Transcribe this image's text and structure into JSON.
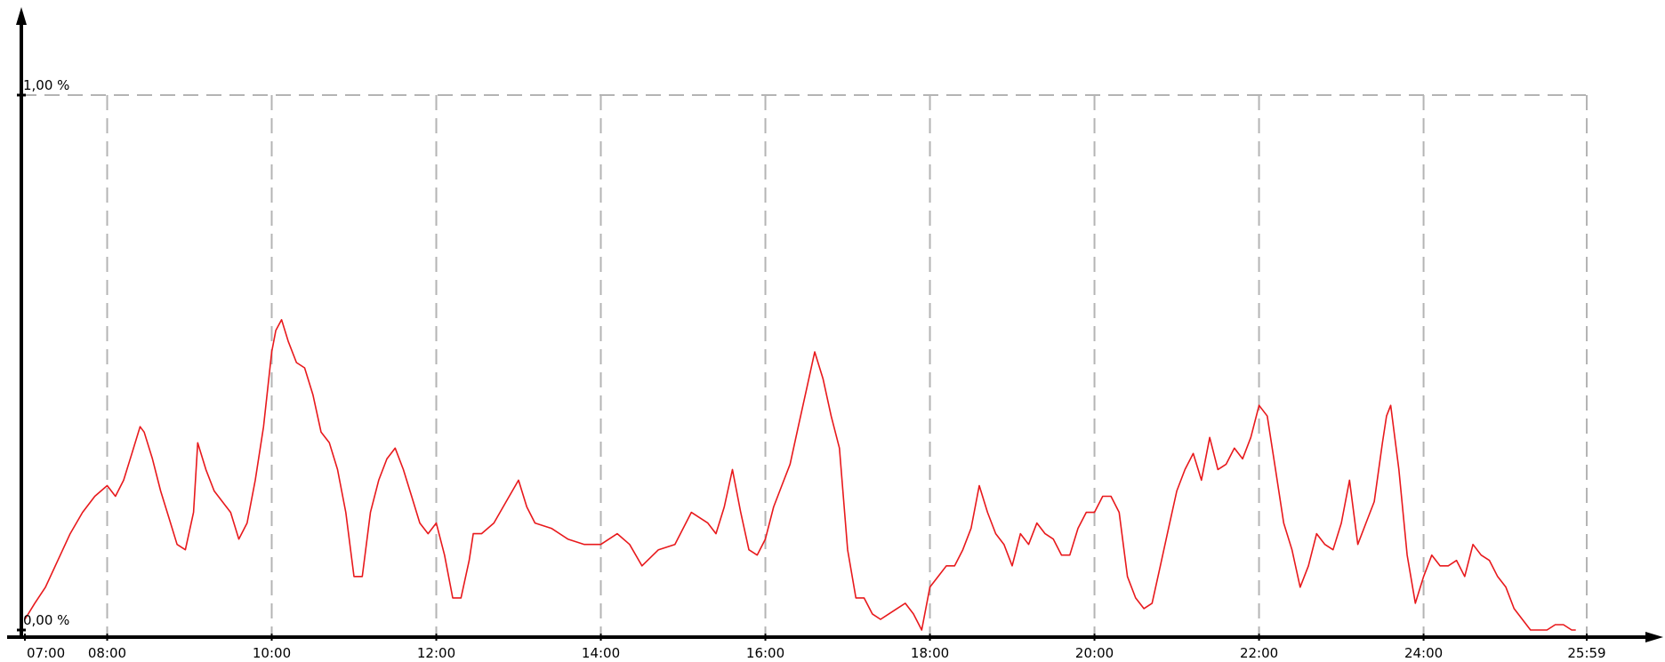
{
  "chart_data": {
    "type": "line",
    "title": "",
    "xlabel": "",
    "ylabel": "",
    "x_unit": "hours",
    "xlim": [
      7.0,
      25.983
    ],
    "ylim": [
      0.0,
      1.0
    ],
    "grid": {
      "x": true,
      "y": true,
      "style": "dashed"
    },
    "legend": "none",
    "colors": {
      "series": "#e8191c",
      "grid": "#b4b4b4",
      "axis": "#000000"
    },
    "x_ticks": [
      {
        "x": 7.0,
        "label": "07:00"
      },
      {
        "x": 8.0,
        "label": "08:00"
      },
      {
        "x": 10.0,
        "label": "10:00"
      },
      {
        "x": 12.0,
        "label": "12:00"
      },
      {
        "x": 14.0,
        "label": "14:00"
      },
      {
        "x": 16.0,
        "label": "16:00"
      },
      {
        "x": 18.0,
        "label": "18:00"
      },
      {
        "x": 20.0,
        "label": "20:00"
      },
      {
        "x": 22.0,
        "label": "22:00"
      },
      {
        "x": 24.0,
        "label": "24:00"
      },
      {
        "x": 25.983,
        "label": "25:59"
      }
    ],
    "y_ticks": [
      {
        "y": 0.0,
        "label": "0,00 %"
      },
      {
        "y": 1.0,
        "label": "1,00 %"
      }
    ],
    "series": [
      {
        "color": "#e8191c",
        "x": [
          7.0,
          7.12,
          7.25,
          7.4,
          7.55,
          7.7,
          7.85,
          8.0,
          8.1,
          8.2,
          8.3,
          8.4,
          8.45,
          8.55,
          8.65,
          8.75,
          8.85,
          8.95,
          9.05,
          9.1,
          9.2,
          9.3,
          9.4,
          9.5,
          9.6,
          9.7,
          9.8,
          9.9,
          10.0,
          10.05,
          10.12,
          10.2,
          10.3,
          10.4,
          10.5,
          10.6,
          10.7,
          10.8,
          10.9,
          11.0,
          11.1,
          11.2,
          11.3,
          11.4,
          11.5,
          11.6,
          11.7,
          11.8,
          11.9,
          12.0,
          12.1,
          12.2,
          12.3,
          12.4,
          12.45,
          12.55,
          12.7,
          12.85,
          13.0,
          13.1,
          13.2,
          13.4,
          13.6,
          13.8,
          14.0,
          14.2,
          14.35,
          14.5,
          14.7,
          14.9,
          15.1,
          15.3,
          15.4,
          15.5,
          15.6,
          15.7,
          15.8,
          15.9,
          16.0,
          16.1,
          16.2,
          16.3,
          16.4,
          16.5,
          16.6,
          16.7,
          16.8,
          16.9,
          17.0,
          17.1,
          17.2,
          17.3,
          17.4,
          17.5,
          17.6,
          17.7,
          17.8,
          17.9,
          18.0,
          18.1,
          18.2,
          18.3,
          18.4,
          18.5,
          18.6,
          18.7,
          18.8,
          18.9,
          19.0,
          19.1,
          19.2,
          19.3,
          19.4,
          19.5,
          19.6,
          19.7,
          19.8,
          19.9,
          20.0,
          20.1,
          20.2,
          20.3,
          20.4,
          20.5,
          20.6,
          20.7,
          20.8,
          20.9,
          21.0,
          21.1,
          21.2,
          21.3,
          21.4,
          21.5,
          21.6,
          21.7,
          21.8,
          21.9,
          22.0,
          22.1,
          22.2,
          22.3,
          22.4,
          22.5,
          22.6,
          22.7,
          22.8,
          22.9,
          23.0,
          23.1,
          23.2,
          23.3,
          23.4,
          23.5,
          23.55,
          23.6,
          23.7,
          23.8,
          23.9,
          24.0,
          24.1,
          24.2,
          24.3,
          24.4,
          24.5,
          24.6,
          24.7,
          24.8,
          24.9,
          25.0,
          25.1,
          25.2,
          25.3,
          25.4,
          25.5,
          25.6,
          25.7,
          25.8,
          25.85
        ],
        "y": [
          0.02,
          0.05,
          0.08,
          0.13,
          0.18,
          0.22,
          0.25,
          0.27,
          0.25,
          0.28,
          0.33,
          0.38,
          0.37,
          0.32,
          0.26,
          0.21,
          0.16,
          0.15,
          0.22,
          0.35,
          0.3,
          0.26,
          0.24,
          0.22,
          0.17,
          0.2,
          0.28,
          0.38,
          0.52,
          0.56,
          0.58,
          0.54,
          0.5,
          0.49,
          0.44,
          0.37,
          0.35,
          0.3,
          0.22,
          0.1,
          0.1,
          0.22,
          0.28,
          0.32,
          0.34,
          0.3,
          0.25,
          0.2,
          0.18,
          0.2,
          0.14,
          0.06,
          0.06,
          0.13,
          0.18,
          0.18,
          0.2,
          0.24,
          0.28,
          0.23,
          0.2,
          0.19,
          0.17,
          0.16,
          0.16,
          0.18,
          0.16,
          0.12,
          0.15,
          0.16,
          0.22,
          0.2,
          0.18,
          0.23,
          0.3,
          0.22,
          0.15,
          0.14,
          0.17,
          0.23,
          0.27,
          0.31,
          0.38,
          0.45,
          0.52,
          0.47,
          0.4,
          0.34,
          0.15,
          0.06,
          0.06,
          0.03,
          0.02,
          0.03,
          0.04,
          0.05,
          0.03,
          0.0,
          0.08,
          0.1,
          0.12,
          0.12,
          0.15,
          0.19,
          0.27,
          0.22,
          0.18,
          0.16,
          0.12,
          0.18,
          0.16,
          0.2,
          0.18,
          0.17,
          0.14,
          0.14,
          0.19,
          0.22,
          0.22,
          0.25,
          0.25,
          0.22,
          0.1,
          0.06,
          0.04,
          0.05,
          0.12,
          0.19,
          0.26,
          0.3,
          0.33,
          0.28,
          0.36,
          0.3,
          0.31,
          0.34,
          0.32,
          0.36,
          0.42,
          0.4,
          0.3,
          0.2,
          0.15,
          0.08,
          0.12,
          0.18,
          0.16,
          0.15,
          0.2,
          0.28,
          0.16,
          0.2,
          0.24,
          0.35,
          0.4,
          0.42,
          0.3,
          0.14,
          0.05,
          0.1,
          0.14,
          0.12,
          0.12,
          0.13,
          0.1,
          0.16,
          0.14,
          0.13,
          0.1,
          0.08,
          0.04,
          0.02,
          0.0,
          0.0,
          0.0,
          0.01,
          0.01,
          0.0,
          0.0
        ]
      }
    ]
  }
}
